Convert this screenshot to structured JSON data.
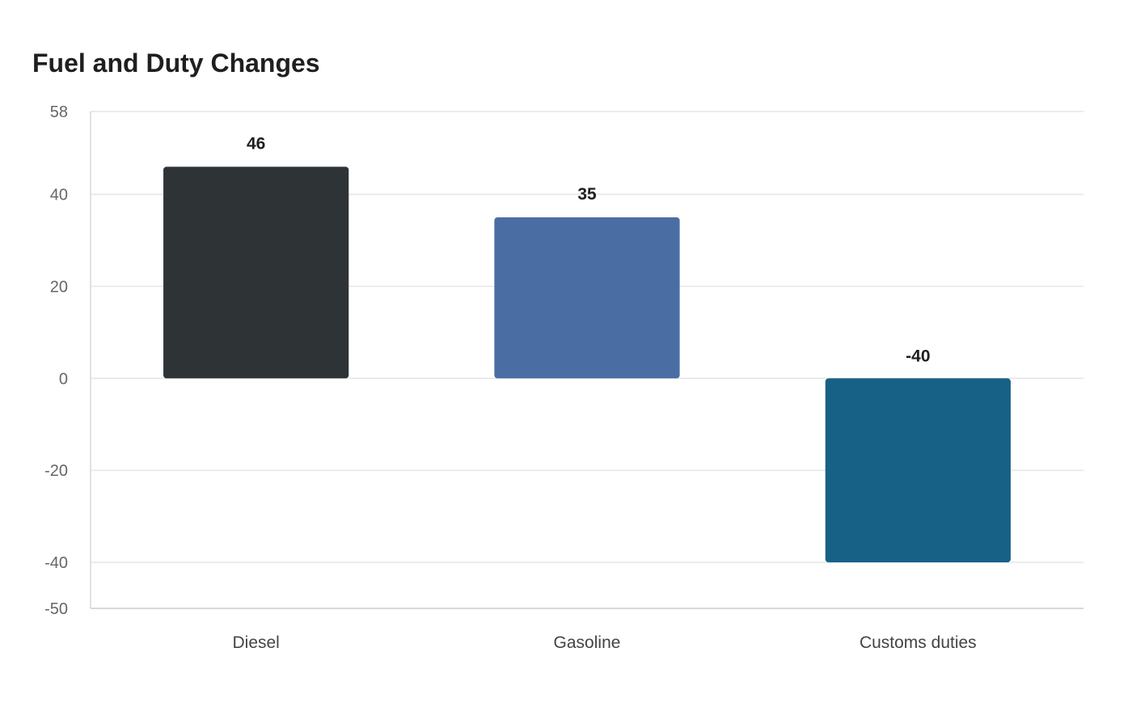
{
  "chart_data": {
    "type": "bar",
    "title": "Fuel and Duty Changes",
    "xlabel": "",
    "ylabel": "",
    "categories": [
      "Diesel",
      "Gasoline",
      "Customs duties"
    ],
    "values": [
      46,
      35,
      -40
    ],
    "value_labels": [
      "46",
      "35",
      "-40"
    ],
    "colors": [
      "#2e3436",
      "#4a6da4",
      "#176187"
    ],
    "ylim": [
      -50,
      58
    ],
    "yticks": [
      58,
      40,
      20,
      0,
      -20,
      -40,
      -50
    ],
    "ytick_labels": [
      "58",
      "40",
      "20",
      "0",
      "-20",
      "-40",
      "-50"
    ],
    "gridlines": [
      58,
      40,
      20,
      0,
      -20,
      -40
    ],
    "grid": true,
    "legend": "none"
  }
}
